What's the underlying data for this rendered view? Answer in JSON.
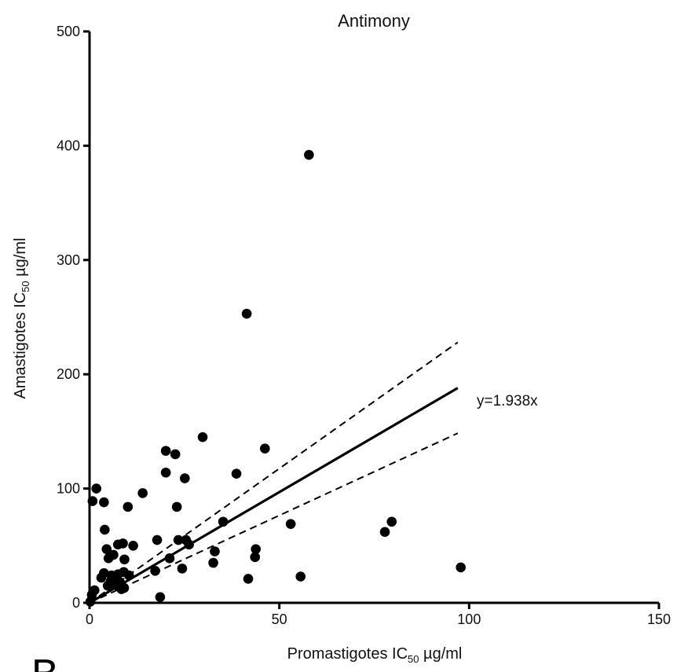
{
  "chart_data": {
    "type": "scatter",
    "title": "Antimony",
    "xlabel": {
      "prefix": "Promastigotes IC",
      "sub": "50",
      "suffix": " µg/ml"
    },
    "ylabel": {
      "prefix": "Amastigotes IC",
      "sub": "50",
      "suffix": " µg/ml"
    },
    "xlim": [
      0,
      150
    ],
    "ylim": [
      0,
      500
    ],
    "xticks": [
      0,
      50,
      100,
      150
    ],
    "yticks": [
      0,
      100,
      200,
      300,
      400,
      500
    ],
    "grid": false,
    "fit": {
      "slope": 1.938,
      "x_range": [
        0,
        97
      ],
      "ci_slopes": [
        2.35,
        1.53
      ],
      "label": "y=1.938x"
    },
    "points": [
      [
        57.8,
        392
      ],
      [
        41.4,
        253
      ],
      [
        29.8,
        145
      ],
      [
        46.2,
        135
      ],
      [
        20.1,
        133
      ],
      [
        22.6,
        130
      ],
      [
        38.7,
        113
      ],
      [
        20.1,
        114
      ],
      [
        25.1,
        109
      ],
      [
        1.8,
        100
      ],
      [
        14.0,
        96
      ],
      [
        0.8,
        89
      ],
      [
        3.8,
        88
      ],
      [
        10.1,
        84
      ],
      [
        23.0,
        84
      ],
      [
        4.0,
        64
      ],
      [
        35.2,
        71
      ],
      [
        53.0,
        69
      ],
      [
        79.6,
        71
      ],
      [
        77.8,
        62
      ],
      [
        17.8,
        55
      ],
      [
        23.4,
        55
      ],
      [
        25.4,
        55
      ],
      [
        26.2,
        51
      ],
      [
        11.5,
        50
      ],
      [
        7.5,
        51
      ],
      [
        8.8,
        52
      ],
      [
        4.5,
        47
      ],
      [
        43.8,
        47
      ],
      [
        33.0,
        45
      ],
      [
        43.6,
        40
      ],
      [
        6.3,
        42
      ],
      [
        5.0,
        39
      ],
      [
        9.2,
        38
      ],
      [
        21.1,
        39
      ],
      [
        32.6,
        35
      ],
      [
        24.4,
        30
      ],
      [
        17.3,
        28
      ],
      [
        3.8,
        26
      ],
      [
        5.8,
        24
      ],
      [
        7.5,
        25
      ],
      [
        9.0,
        27
      ],
      [
        10.4,
        24
      ],
      [
        3.1,
        22
      ],
      [
        5.6,
        19
      ],
      [
        7.0,
        21
      ],
      [
        8.0,
        18
      ],
      [
        4.8,
        15
      ],
      [
        7.2,
        15
      ],
      [
        8.4,
        12
      ],
      [
        9.1,
        13
      ],
      [
        1.3,
        11
      ],
      [
        0.6,
        7
      ],
      [
        41.8,
        21
      ],
      [
        55.6,
        23
      ],
      [
        97.8,
        31
      ],
      [
        18.6,
        5
      ],
      [
        0.2,
        1
      ]
    ]
  },
  "panel_label": "B"
}
